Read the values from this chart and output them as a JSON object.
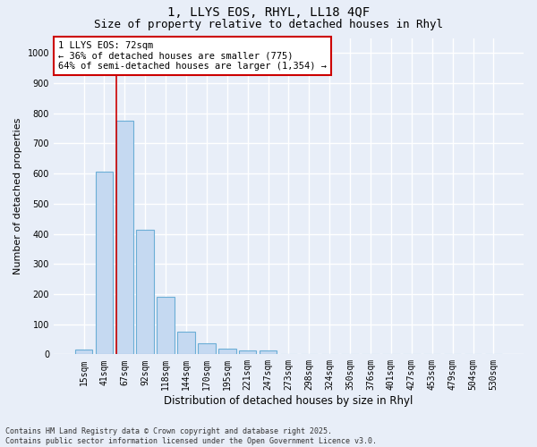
{
  "title_line1": "1, LLYS EOS, RHYL, LL18 4QF",
  "title_line2": "Size of property relative to detached houses in Rhyl",
  "xlabel": "Distribution of detached houses by size in Rhyl",
  "ylabel": "Number of detached properties",
  "categories": [
    "15sqm",
    "41sqm",
    "67sqm",
    "92sqm",
    "118sqm",
    "144sqm",
    "170sqm",
    "195sqm",
    "221sqm",
    "247sqm",
    "273sqm",
    "298sqm",
    "324sqm",
    "350sqm",
    "376sqm",
    "401sqm",
    "427sqm",
    "453sqm",
    "479sqm",
    "504sqm",
    "530sqm"
  ],
  "values": [
    15,
    605,
    775,
    413,
    192,
    75,
    38,
    18,
    13,
    13,
    0,
    0,
    0,
    0,
    0,
    0,
    0,
    0,
    0,
    0,
    0
  ],
  "bar_color": "#c5d9f1",
  "bar_edge_color": "#6baed6",
  "vline_index": 2,
  "vline_color": "#cc0000",
  "annotation_text": "1 LLYS EOS: 72sqm\n← 36% of detached houses are smaller (775)\n64% of semi-detached houses are larger (1,354) →",
  "annotation_box_color": "white",
  "annotation_box_edge_color": "#cc0000",
  "ylim": [
    0,
    1050
  ],
  "yticks": [
    0,
    100,
    200,
    300,
    400,
    500,
    600,
    700,
    800,
    900,
    1000
  ],
  "background_color": "#e8eef8",
  "grid_color": "#ffffff",
  "footnote": "Contains HM Land Registry data © Crown copyright and database right 2025.\nContains public sector information licensed under the Open Government Licence v3.0.",
  "title_fontsize": 10,
  "subtitle_fontsize": 9,
  "tick_fontsize": 7,
  "ylabel_fontsize": 8,
  "xlabel_fontsize": 8.5,
  "annot_fontsize": 7.5
}
